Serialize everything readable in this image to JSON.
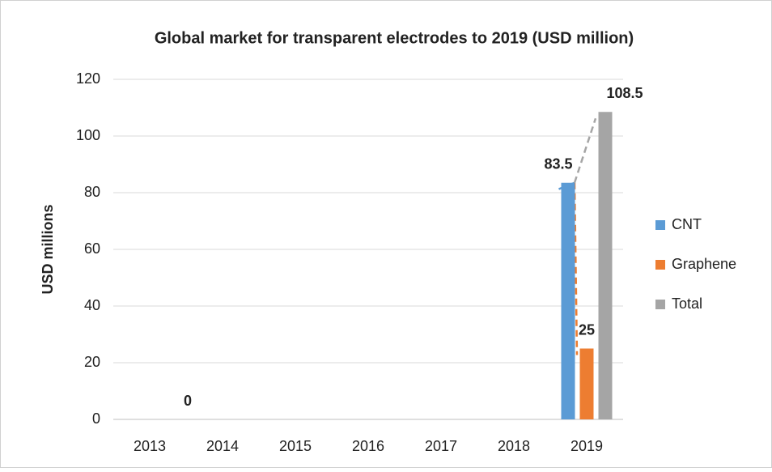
{
  "chart_data": {
    "type": "bar",
    "title": "Global market for transparent electrodes to 2019 (USD million)",
    "y_label": "USD millions",
    "categories": [
      "2013",
      "2014",
      "2015",
      "2016",
      "2017",
      "2018",
      "2019"
    ],
    "series": [
      {
        "name": "CNT",
        "color": "#5b9bd5",
        "values": [
          null,
          null,
          null,
          null,
          null,
          null,
          83.5
        ]
      },
      {
        "name": "Graphene",
        "color": "#ed7d31",
        "values": [
          null,
          null,
          null,
          null,
          null,
          null,
          25
        ]
      },
      {
        "name": "Total",
        "color": "#a5a5a5",
        "values": [
          0,
          null,
          null,
          null,
          null,
          null,
          108.5
        ]
      }
    ],
    "ylim": [
      0,
      120
    ],
    "yticks": [
      0,
      20,
      40,
      60,
      80,
      100,
      120
    ],
    "grid": true,
    "legend": "right",
    "trendline": true
  }
}
